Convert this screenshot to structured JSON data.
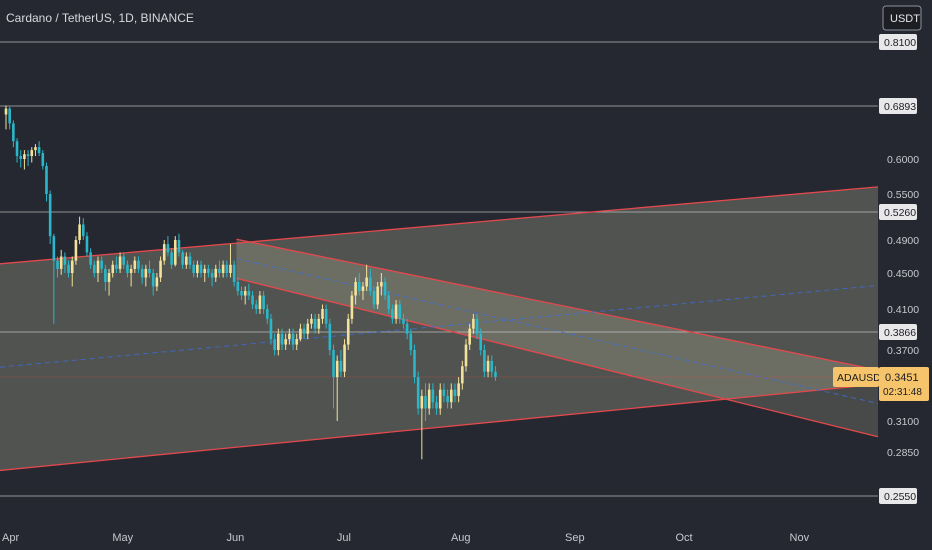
{
  "header": {
    "symbol_title": "Cardano / TetherUS, 1D, BINANCE",
    "currency_button": "USDT"
  },
  "price_tag": {
    "symbol": "ADAUSDT",
    "price": "0.3451",
    "countdown": "02:31:48"
  },
  "colors": {
    "background": "#252830",
    "bull": "#f3e29a",
    "bear": "#2ab7ca",
    "channel_edge": "#e5484d",
    "channel_fill": "#ffffcc",
    "midline": "#3d6bd6",
    "level_line": "#cfcfcf",
    "current_price_line": "#e5484d",
    "price_tag_bg": "#f6c46a"
  },
  "chart_data": {
    "type": "candlestick",
    "title": "Cardano / TetherUS, 1D, BINANCE",
    "x_axis": {
      "ticks": [
        "Apr",
        "May",
        "Jun",
        "Jul",
        "Aug",
        "Sep",
        "Oct",
        "Nov"
      ]
    },
    "y_axis": {
      "ticks": [
        "0.2850",
        "0.3100",
        "0.3700",
        "0.4100",
        "0.4500",
        "0.4900",
        "0.5500",
        "0.6000"
      ],
      "highlighted_levels": [
        "0.2550",
        "0.3866",
        "0.5260",
        "0.6893",
        "0.8100"
      ],
      "range": [
        0.255,
        0.81
      ]
    },
    "horizontal_levels": [
      0.81,
      0.6893,
      0.526,
      0.3866,
      0.255
    ],
    "current_price": 0.3451,
    "ascending_channel": {
      "upper": [
        [
          "Mar 31",
          0.462
        ],
        [
          "Dec 5",
          0.566
        ]
      ],
      "lower": [
        [
          "Mar 31",
          0.273
        ],
        [
          "Dec 5",
          0.343
        ]
      ]
    },
    "descending_channel": {
      "upper": [
        [
          "Jun 1",
          0.491
        ],
        [
          "Dec 5",
          0.343
        ]
      ],
      "lower": [
        [
          "Jun 1",
          0.444
        ],
        [
          "Dec 5",
          0.288
        ]
      ]
    },
    "candles": [
      [
        0.675,
        0.69,
        0.65,
        0.685
      ],
      [
        0.685,
        0.688,
        0.65,
        0.66
      ],
      [
        0.66,
        0.665,
        0.62,
        0.63
      ],
      [
        0.63,
        0.635,
        0.595,
        0.605
      ],
      [
        0.605,
        0.615,
        0.588,
        0.6
      ],
      [
        0.6,
        0.615,
        0.585,
        0.608
      ],
      [
        0.608,
        0.615,
        0.59,
        0.605
      ],
      [
        0.605,
        0.62,
        0.595,
        0.615
      ],
      [
        0.615,
        0.625,
        0.605,
        0.62
      ],
      [
        0.62,
        0.63,
        0.605,
        0.61
      ],
      [
        0.61,
        0.615,
        0.585,
        0.59
      ],
      [
        0.59,
        0.595,
        0.54,
        0.55
      ],
      [
        0.55,
        0.555,
        0.485,
        0.495
      ],
      [
        0.495,
        0.498,
        0.395,
        0.465
      ],
      [
        0.465,
        0.47,
        0.445,
        0.455
      ],
      [
        0.455,
        0.478,
        0.448,
        0.47
      ],
      [
        0.47,
        0.475,
        0.45,
        0.46
      ],
      [
        0.46,
        0.465,
        0.445,
        0.45
      ],
      [
        0.45,
        0.47,
        0.435,
        0.465
      ],
      [
        0.465,
        0.495,
        0.46,
        0.49
      ],
      [
        0.49,
        0.52,
        0.485,
        0.51
      ],
      [
        0.51,
        0.518,
        0.49,
        0.495
      ],
      [
        0.495,
        0.5,
        0.47,
        0.475
      ],
      [
        0.475,
        0.48,
        0.455,
        0.46
      ],
      [
        0.46,
        0.465,
        0.445,
        0.45
      ],
      [
        0.45,
        0.47,
        0.44,
        0.465
      ],
      [
        0.465,
        0.47,
        0.45,
        0.455
      ],
      [
        0.455,
        0.46,
        0.43,
        0.44
      ],
      [
        0.44,
        0.455,
        0.425,
        0.45
      ],
      [
        0.45,
        0.465,
        0.445,
        0.46
      ],
      [
        0.46,
        0.47,
        0.45,
        0.455
      ],
      [
        0.455,
        0.475,
        0.45,
        0.47
      ],
      [
        0.47,
        0.475,
        0.455,
        0.46
      ],
      [
        0.46,
        0.465,
        0.445,
        0.45
      ],
      [
        0.45,
        0.46,
        0.435,
        0.455
      ],
      [
        0.455,
        0.47,
        0.45,
        0.465
      ],
      [
        0.465,
        0.47,
        0.45,
        0.455
      ],
      [
        0.455,
        0.46,
        0.438,
        0.445
      ],
      [
        0.445,
        0.46,
        0.435,
        0.455
      ],
      [
        0.455,
        0.465,
        0.445,
        0.45
      ],
      [
        0.45,
        0.455,
        0.425,
        0.435
      ],
      [
        0.435,
        0.45,
        0.43,
        0.445
      ],
      [
        0.445,
        0.47,
        0.44,
        0.465
      ],
      [
        0.465,
        0.49,
        0.46,
        0.485
      ],
      [
        0.485,
        0.495,
        0.47,
        0.475
      ],
      [
        0.475,
        0.48,
        0.455,
        0.46
      ],
      [
        0.46,
        0.495,
        0.458,
        0.49
      ],
      [
        0.49,
        0.498,
        0.47,
        0.475
      ],
      [
        0.475,
        0.478,
        0.455,
        0.46
      ],
      [
        0.46,
        0.475,
        0.455,
        0.47
      ],
      [
        0.47,
        0.475,
        0.455,
        0.46
      ],
      [
        0.46,
        0.465,
        0.445,
        0.45
      ],
      [
        0.45,
        0.465,
        0.445,
        0.46
      ],
      [
        0.46,
        0.465,
        0.445,
        0.45
      ],
      [
        0.45,
        0.46,
        0.44,
        0.455
      ],
      [
        0.455,
        0.46,
        0.445,
        0.45
      ],
      [
        0.45,
        0.455,
        0.435,
        0.445
      ],
      [
        0.445,
        0.46,
        0.44,
        0.455
      ],
      [
        0.455,
        0.465,
        0.445,
        0.45
      ],
      [
        0.45,
        0.465,
        0.445,
        0.46
      ],
      [
        0.46,
        0.465,
        0.445,
        0.45
      ],
      [
        0.45,
        0.485,
        0.445,
        0.46
      ],
      [
        0.46,
        0.465,
        0.435,
        0.44
      ],
      [
        0.44,
        0.445,
        0.425,
        0.43
      ],
      [
        0.43,
        0.435,
        0.42,
        0.425
      ],
      [
        0.425,
        0.435,
        0.415,
        0.43
      ],
      [
        0.43,
        0.438,
        0.42,
        0.425
      ],
      [
        0.425,
        0.43,
        0.41,
        0.415
      ],
      [
        0.415,
        0.42,
        0.405,
        0.41
      ],
      [
        0.41,
        0.43,
        0.405,
        0.425
      ],
      [
        0.425,
        0.43,
        0.405,
        0.41
      ],
      [
        0.41,
        0.415,
        0.395,
        0.4
      ],
      [
        0.4,
        0.405,
        0.375,
        0.38
      ],
      [
        0.38,
        0.385,
        0.365,
        0.37
      ],
      [
        0.37,
        0.39,
        0.365,
        0.385
      ],
      [
        0.385,
        0.39,
        0.37,
        0.375
      ],
      [
        0.375,
        0.385,
        0.37,
        0.38
      ],
      [
        0.38,
        0.39,
        0.375,
        0.385
      ],
      [
        0.385,
        0.39,
        0.37,
        0.375
      ],
      [
        0.375,
        0.385,
        0.37,
        0.38
      ],
      [
        0.38,
        0.395,
        0.378,
        0.39
      ],
      [
        0.39,
        0.395,
        0.38,
        0.385
      ],
      [
        0.385,
        0.4,
        0.38,
        0.395
      ],
      [
        0.395,
        0.405,
        0.39,
        0.4
      ],
      [
        0.4,
        0.405,
        0.385,
        0.39
      ],
      [
        0.39,
        0.405,
        0.385,
        0.4
      ],
      [
        0.4,
        0.415,
        0.395,
        0.41
      ],
      [
        0.41,
        0.415,
        0.39,
        0.395
      ],
      [
        0.395,
        0.4,
        0.365,
        0.37
      ],
      [
        0.37,
        0.375,
        0.32,
        0.345
      ],
      [
        0.345,
        0.365,
        0.31,
        0.36
      ],
      [
        0.36,
        0.37,
        0.345,
        0.35
      ],
      [
        0.35,
        0.38,
        0.345,
        0.375
      ],
      [
        0.375,
        0.405,
        0.37,
        0.4
      ],
      [
        0.4,
        0.43,
        0.395,
        0.425
      ],
      [
        0.425,
        0.445,
        0.415,
        0.44
      ],
      [
        0.44,
        0.45,
        0.425,
        0.43
      ],
      [
        0.43,
        0.44,
        0.42,
        0.435
      ],
      [
        0.435,
        0.46,
        0.43,
        0.445
      ],
      [
        0.445,
        0.455,
        0.425,
        0.43
      ],
      [
        0.43,
        0.435,
        0.41,
        0.415
      ],
      [
        0.415,
        0.44,
        0.41,
        0.435
      ],
      [
        0.435,
        0.45,
        0.425,
        0.44
      ],
      [
        0.44,
        0.445,
        0.42,
        0.425
      ],
      [
        0.425,
        0.43,
        0.405,
        0.41
      ],
      [
        0.41,
        0.415,
        0.395,
        0.4
      ],
      [
        0.4,
        0.42,
        0.395,
        0.415
      ],
      [
        0.415,
        0.42,
        0.395,
        0.4
      ],
      [
        0.4,
        0.405,
        0.39,
        0.395
      ],
      [
        0.395,
        0.4,
        0.38,
        0.385
      ],
      [
        0.385,
        0.39,
        0.365,
        0.37
      ],
      [
        0.37,
        0.375,
        0.34,
        0.345
      ],
      [
        0.345,
        0.35,
        0.315,
        0.32
      ],
      [
        0.32,
        0.335,
        0.28,
        0.33
      ],
      [
        0.33,
        0.34,
        0.31,
        0.32
      ],
      [
        0.32,
        0.34,
        0.315,
        0.335
      ],
      [
        0.335,
        0.34,
        0.32,
        0.325
      ],
      [
        0.325,
        0.33,
        0.315,
        0.32
      ],
      [
        0.32,
        0.34,
        0.315,
        0.335
      ],
      [
        0.335,
        0.34,
        0.325,
        0.33
      ],
      [
        0.33,
        0.335,
        0.32,
        0.325
      ],
      [
        0.325,
        0.34,
        0.32,
        0.335
      ],
      [
        0.335,
        0.34,
        0.325,
        0.33
      ],
      [
        0.33,
        0.345,
        0.325,
        0.34
      ],
      [
        0.34,
        0.36,
        0.335,
        0.355
      ],
      [
        0.355,
        0.38,
        0.35,
        0.375
      ],
      [
        0.375,
        0.395,
        0.37,
        0.39
      ],
      [
        0.39,
        0.405,
        0.385,
        0.4
      ],
      [
        0.4,
        0.405,
        0.38,
        0.385
      ],
      [
        0.385,
        0.39,
        0.365,
        0.37
      ],
      [
        0.37,
        0.375,
        0.345,
        0.35
      ],
      [
        0.35,
        0.365,
        0.345,
        0.36
      ],
      [
        0.36,
        0.365,
        0.345,
        0.35
      ],
      [
        0.35,
        0.355,
        0.342,
        0.3451
      ]
    ]
  }
}
